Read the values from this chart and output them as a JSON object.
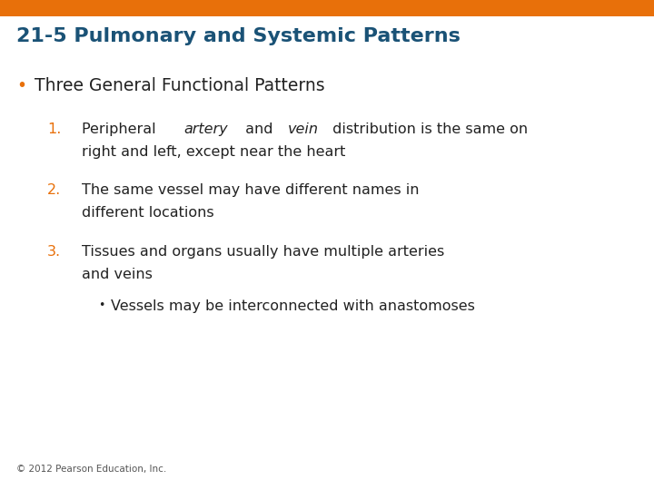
{
  "title": "21-5 Pulmonary and Systemic Patterns",
  "title_color": "#1a5276",
  "title_fontsize": 16,
  "header_bar_color": "#e8700a",
  "background_color": "#ffffff",
  "bullet_color": "#e8700a",
  "number_color": "#e8700a",
  "body_text_color": "#222222",
  "footer_text": "© 2012 Pearson Education, Inc.",
  "footer_fontsize": 7.5,
  "footer_color": "#555555",
  "bullet1_text": "Three General Functional Patterns",
  "bullet1_fontsize": 13.5,
  "item_fontsize": 11.5,
  "item1_line2": "right and left, except near the heart",
  "item2_line1": "The same vessel may have different names in",
  "item2_line2": "different locations",
  "item3_line1": "Tissues and organs usually have multiple arteries",
  "item3_line2": "and veins",
  "sub_bullet_text": "Vessels may be interconnected with anastomoses"
}
